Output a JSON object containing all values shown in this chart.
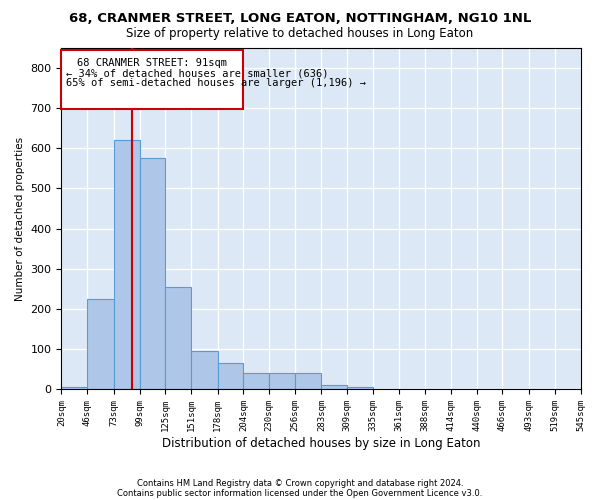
{
  "title": "68, CRANMER STREET, LONG EATON, NOTTINGHAM, NG10 1NL",
  "subtitle": "Size of property relative to detached houses in Long Eaton",
  "xlabel": "Distribution of detached houses by size in Long Eaton",
  "ylabel": "Number of detached properties",
  "bar_color": "#aec6e8",
  "bar_edge_color": "#5b9bd5",
  "background_color": "#dce8f5",
  "grid_color": "#ffffff",
  "annotation_line1": "68 CRANMER STREET: 91sqm",
  "annotation_line2": "← 34% of detached houses are smaller (636)",
  "annotation_line3": "65% of semi-detached houses are larger (1,196) →",
  "vline_x": 91,
  "vline_color": "#cc0000",
  "footer1": "Contains HM Land Registry data © Crown copyright and database right 2024.",
  "footer2": "Contains public sector information licensed under the Open Government Licence v3.0.",
  "bin_edges": [
    20,
    46,
    73,
    99,
    125,
    151,
    178,
    204,
    230,
    256,
    283,
    309,
    335,
    361,
    388,
    414,
    440,
    466,
    493,
    519,
    545
  ],
  "bar_heights": [
    5,
    225,
    620,
    575,
    255,
    95,
    65,
    40,
    40,
    40,
    10,
    5,
    0,
    0,
    0,
    0,
    0,
    0,
    0,
    0
  ],
  "ylim": [
    0,
    850
  ],
  "yticks": [
    0,
    100,
    200,
    300,
    400,
    500,
    600,
    700,
    800
  ]
}
